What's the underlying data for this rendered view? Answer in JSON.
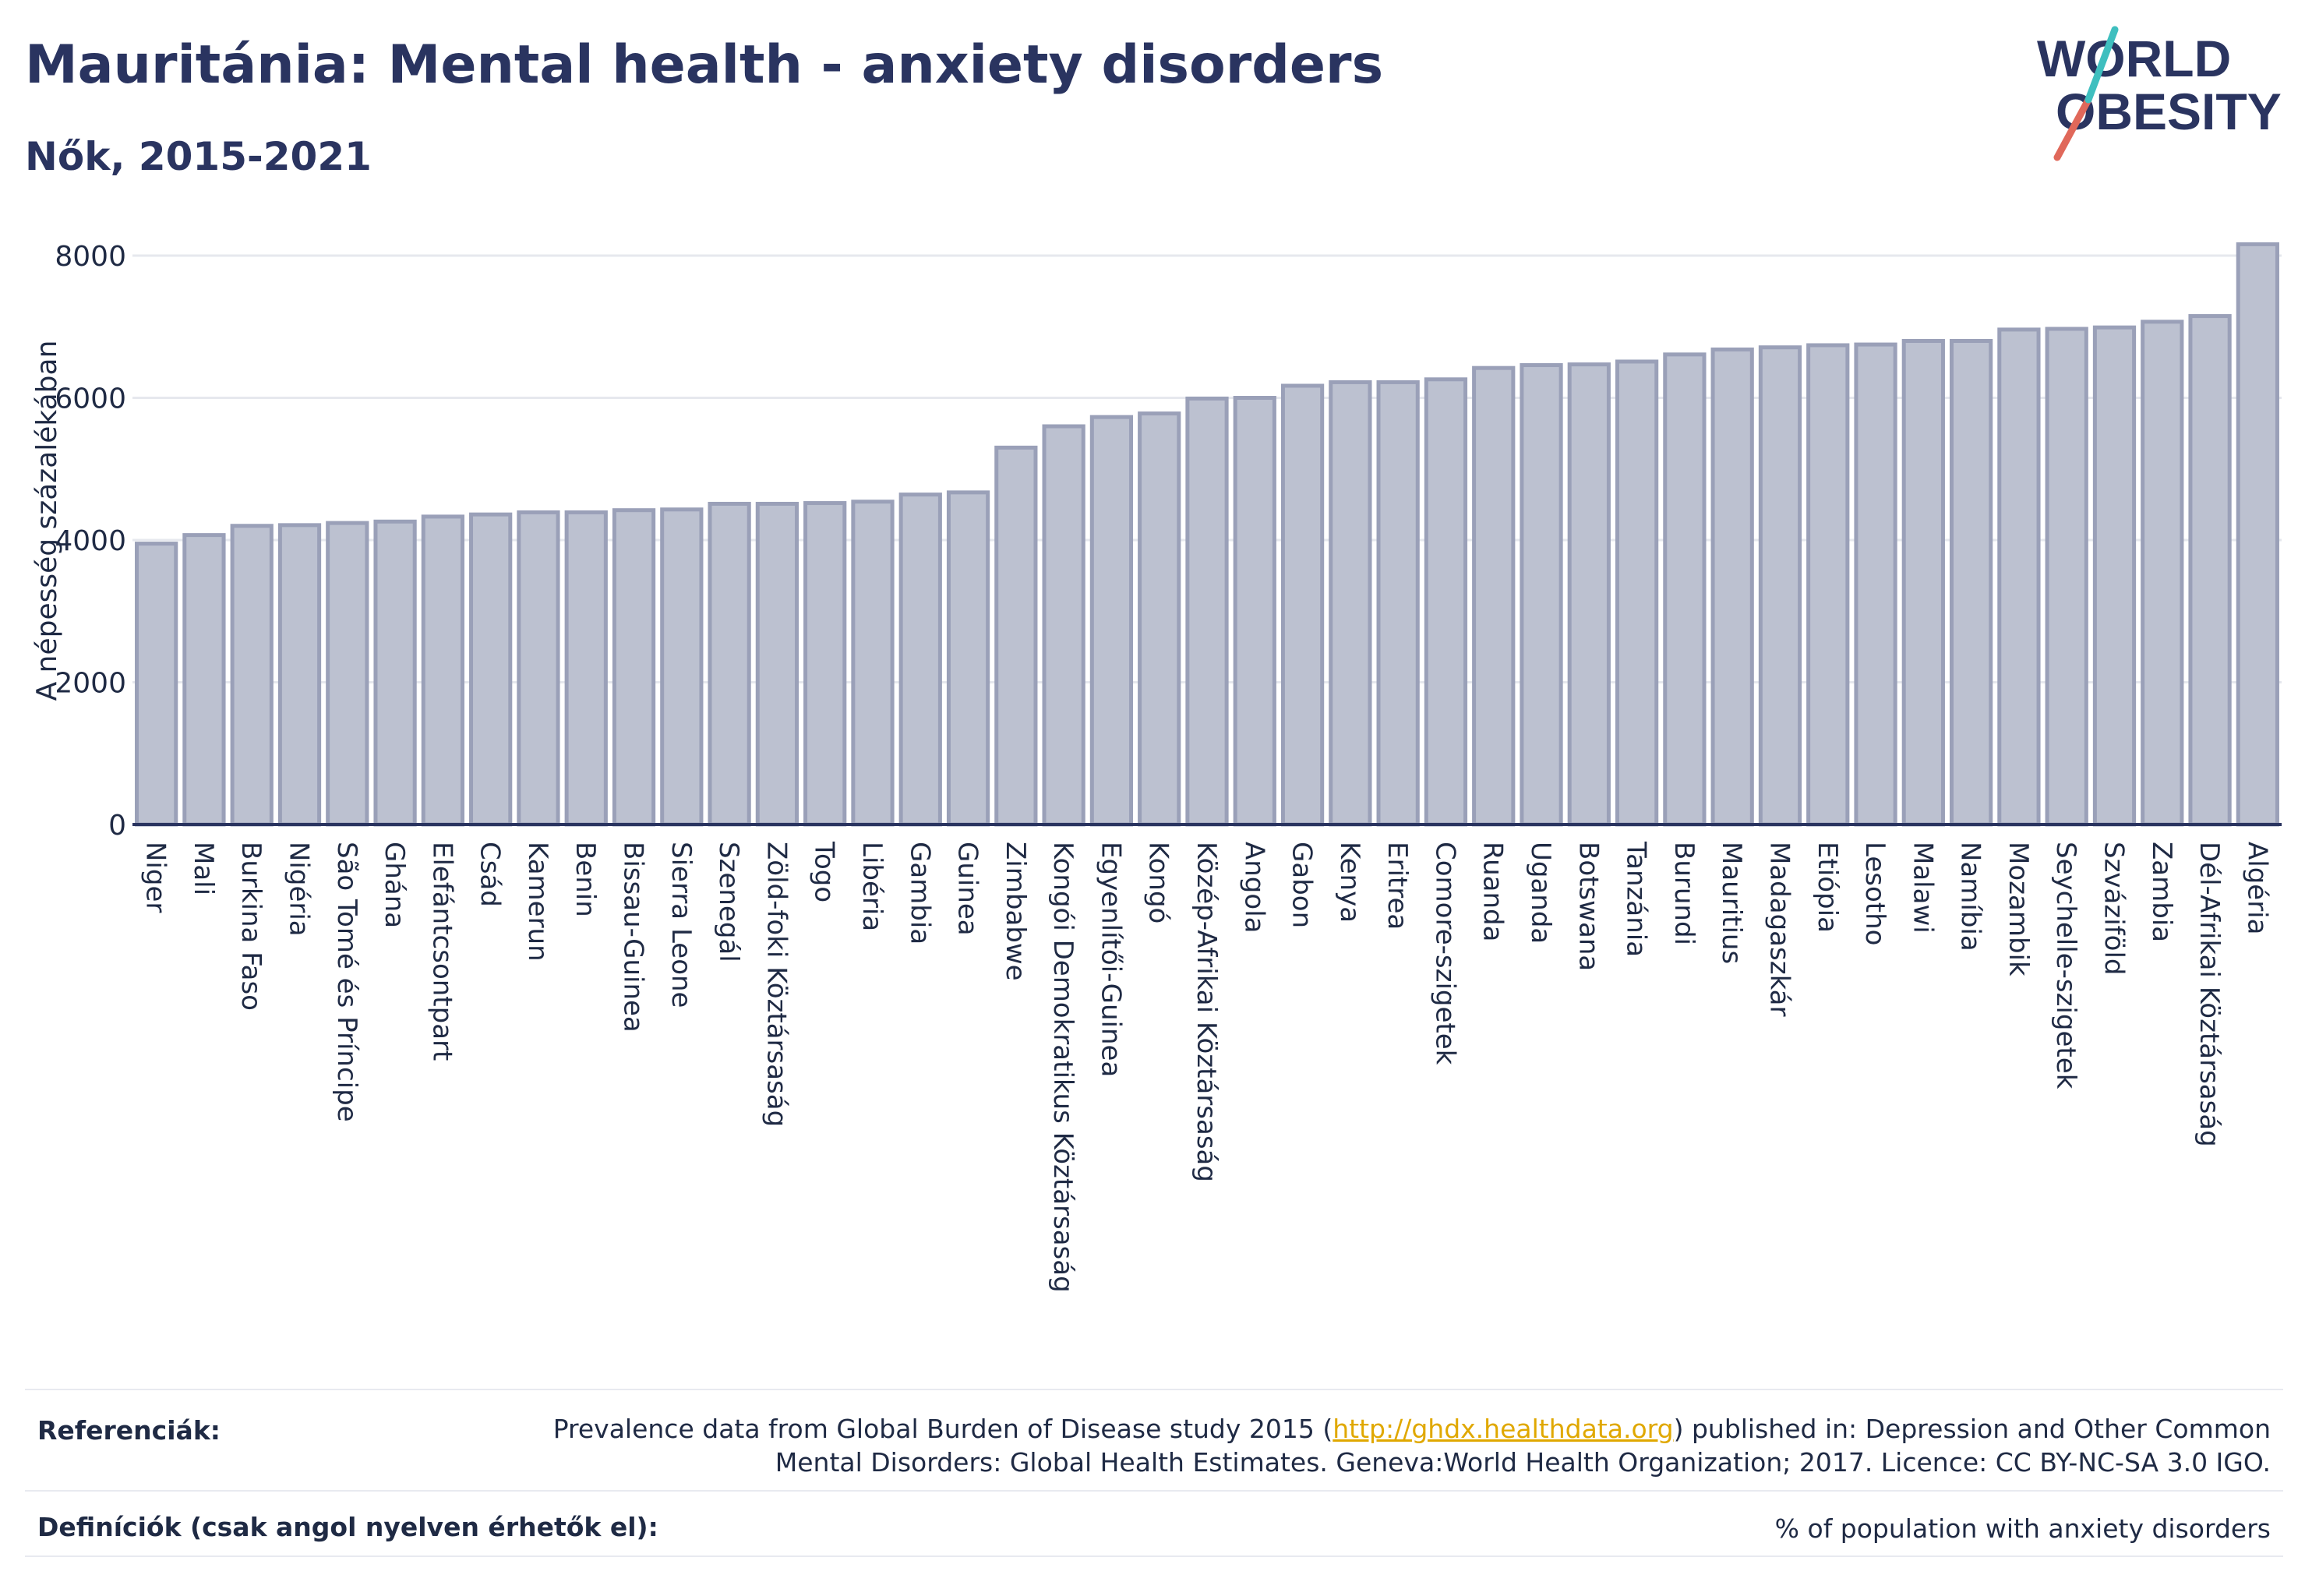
{
  "header": {
    "title": "Mauritánia: Mental health - anxiety disorders",
    "subtitle": "Nők, 2015-2021"
  },
  "logo": {
    "line1": "WORLD",
    "line2": "OBESITY"
  },
  "chart_data": {
    "type": "bar",
    "ylabel": "A népesség százalékában",
    "xlabel": "",
    "ylim": [
      0,
      8400
    ],
    "yticks": [
      0,
      2000,
      4000,
      6000,
      8000
    ],
    "grid": true,
    "bar_color": "#bcc1d0",
    "bar_edge_color": "#9aa0b8",
    "categories": [
      "Niger",
      "Mali",
      "Burkina Faso",
      "Nigéria",
      "São Tomé és Príncipe",
      "Ghána",
      "Elefántcsontpart",
      "Csád",
      "Kamerun",
      "Benin",
      "Bissau-Guinea",
      "Sierra Leone",
      "Szenegál",
      "Zöld-foki Köztársaság",
      "Togo",
      "Libéria",
      "Gambia",
      "Guinea",
      "Zimbabwe",
      "Kongói Demokratikus Köztársaság",
      "Egyenlítői-Guinea",
      "Kongó",
      "Közép-Afrikai Köztársaság",
      "Angola",
      "Gabon",
      "Kenya",
      "Eritrea",
      "Comore-szigetek",
      "Ruanda",
      "Uganda",
      "Botswana",
      "Tanzánia",
      "Burundi",
      "Mauritius",
      "Madagaszkár",
      "Etiópia",
      "Lesotho",
      "Malawi",
      "Namíbia",
      "Mozambik",
      "Seychelle-szigetek",
      "Szváziföld",
      "Zambia",
      "Dél-Afrikai Köztársaság",
      "Algéria"
    ],
    "values": [
      3950,
      4070,
      4200,
      4210,
      4240,
      4260,
      4330,
      4360,
      4390,
      4390,
      4420,
      4430,
      4510,
      4510,
      4520,
      4540,
      4640,
      4670,
      5300,
      5600,
      5730,
      5780,
      5990,
      6000,
      6170,
      6220,
      6220,
      6260,
      6420,
      6460,
      6470,
      6510,
      6610,
      6680,
      6710,
      6740,
      6750,
      6800,
      6800,
      6960,
      6970,
      6990,
      7070,
      7150,
      8160
    ]
  },
  "footer": {
    "references_label": "Referenciák:",
    "references_line1_before": "Prevalence data from Global Burden of Disease study 2015 (",
    "references_link": "http://ghdx.healthdata.org",
    "references_line1_after": ") published in: Depression and Other Common",
    "references_line2": "Mental Disorders: Global Health Estimates. Geneva:World Health Organization; 2017. Licence: CC BY-NC-SA 3.0 IGO.",
    "definitions_label": "Definíciók (csak angol nyelven érhetők el):",
    "definitions_text": "% of population with anxiety disorders"
  }
}
